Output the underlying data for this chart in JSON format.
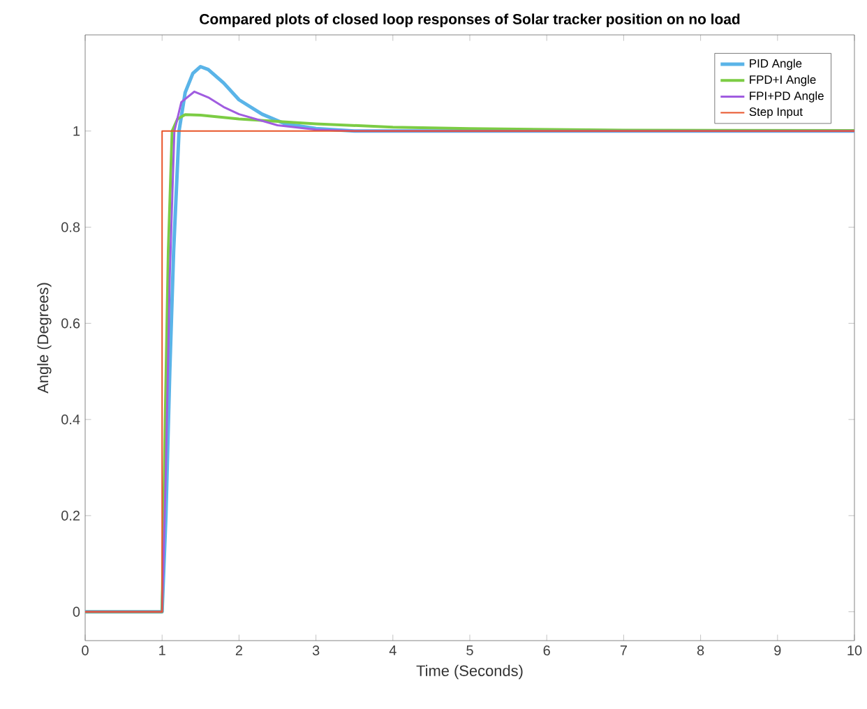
{
  "chart_data": {
    "type": "line",
    "title": "Compared plots of closed loop responses of Solar tracker position on no load",
    "xlabel": "Time (Seconds)",
    "ylabel": "Angle (Degrees)",
    "xlim": [
      0,
      10
    ],
    "ylim": [
      -0.06,
      1.2
    ],
    "xticks": [
      0,
      1,
      2,
      3,
      4,
      5,
      6,
      7,
      8,
      9,
      10
    ],
    "yticks": [
      0,
      0.2,
      0.4,
      0.6,
      0.8,
      1
    ],
    "legend": "top right",
    "grid": false,
    "series": [
      {
        "name": "PID Angle",
        "color": "#5ab4e8",
        "x": [
          0,
          1,
          1.05,
          1.1,
          1.15,
          1.22,
          1.3,
          1.4,
          1.5,
          1.6,
          1.8,
          2,
          2.3,
          2.6,
          3,
          3.5,
          10
        ],
        "values": [
          0,
          0,
          0.2,
          0.5,
          0.75,
          1.0,
          1.08,
          1.12,
          1.134,
          1.128,
          1.1,
          1.065,
          1.035,
          1.015,
          1.005,
          1.0,
          1.0
        ]
      },
      {
        "name": "FPD+I Angle",
        "color": "#7ccc44",
        "x": [
          0,
          1,
          1.04,
          1.08,
          1.13,
          1.2,
          1.3,
          1.5,
          2,
          3,
          4,
          5,
          7,
          10
        ],
        "values": [
          0,
          0,
          0.4,
          0.75,
          1.0,
          1.025,
          1.034,
          1.033,
          1.025,
          1.015,
          1.008,
          1.005,
          1.002,
          1.001
        ]
      },
      {
        "name": "FPI+PD Angle",
        "color": "#a05ce0",
        "x": [
          0,
          1,
          1.05,
          1.1,
          1.16,
          1.25,
          1.42,
          1.6,
          1.8,
          2,
          2.5,
          3,
          3.5,
          10
        ],
        "values": [
          0,
          0,
          0.3,
          0.7,
          1.0,
          1.06,
          1.082,
          1.07,
          1.05,
          1.035,
          1.012,
          1.003,
          1.0,
          1.0
        ]
      },
      {
        "name": "Step Input",
        "color": "#e8552a",
        "x": [
          0,
          1,
          1,
          10
        ],
        "values": [
          0,
          0,
          1,
          1
        ]
      }
    ]
  }
}
